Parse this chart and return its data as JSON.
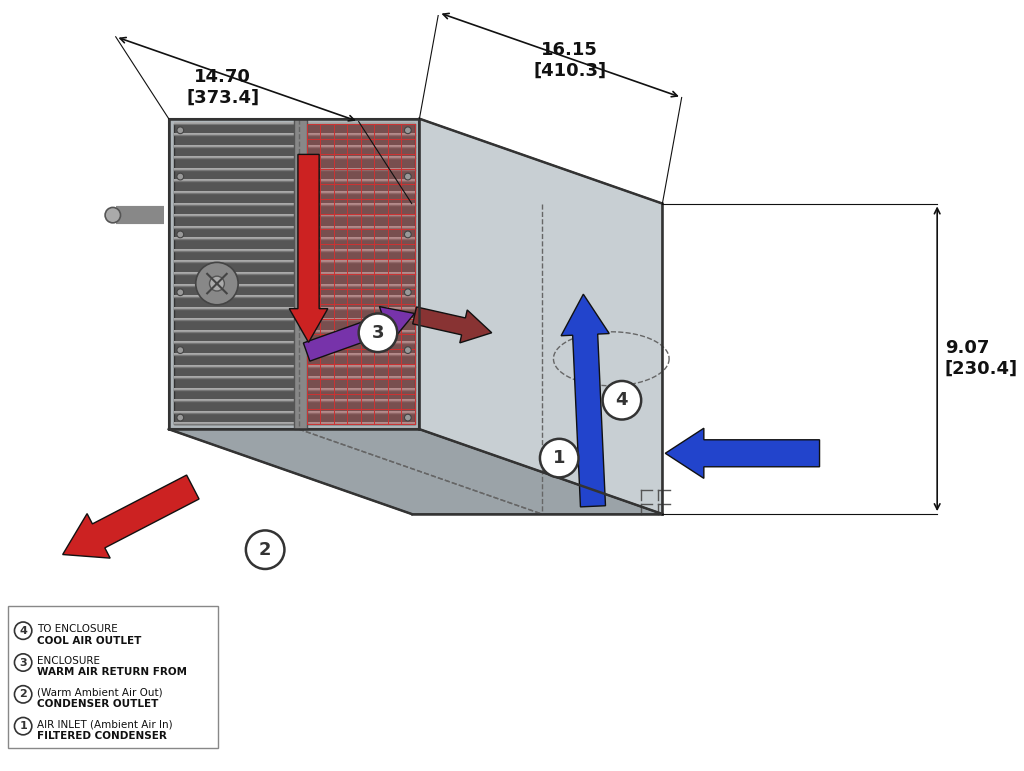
{
  "bg_color": "#ffffff",
  "legend_items": [
    [
      "1",
      "FILTERED CONDENSER",
      "AIR INLET (Ambient Air In)"
    ],
    [
      "2",
      "CONDENSER OUTLET",
      "(Warm Ambient Air Out)"
    ],
    [
      "3",
      "WARM AIR RETURN FROM",
      "ENCLOSURE"
    ],
    [
      "4",
      "COOL AIR OUTLET",
      "TO ENCLOSURE"
    ]
  ],
  "dim_right_label1": "9.07",
  "dim_right_label2": "[230.4]",
  "dim_bottom_left_label1": "14.70",
  "dim_bottom_left_label2": "[373.4]",
  "dim_bottom_right_label1": "16.15",
  "dim_bottom_right_label2": "[410.3]",
  "box_color_top": "#9ba3a8",
  "box_color_front": "#b0b7bb",
  "box_color_right": "#c8cfd3",
  "grille_color": "#555555",
  "outline_color": "#333333",
  "dim_color": "#111111",
  "arrow_red": "#cc2222",
  "arrow_blue": "#2244cc",
  "arrow_purple": "#7733aa",
  "arrow_darkred": "#883333"
}
